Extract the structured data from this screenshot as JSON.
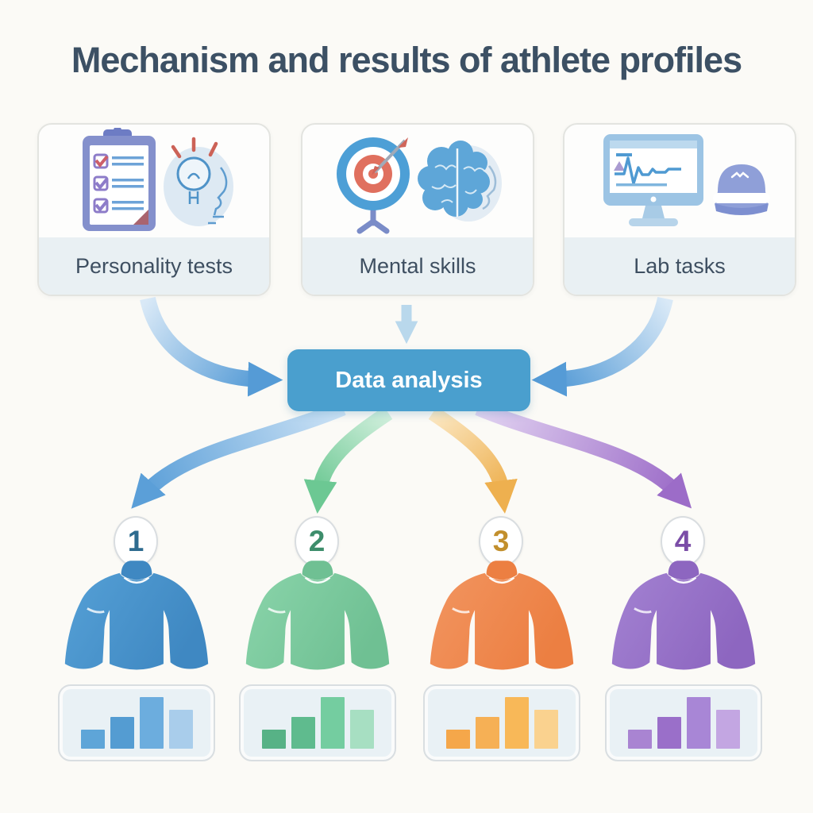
{
  "title": "Mechanism and results of athlete profiles",
  "colors": {
    "background": "#fbfaf6",
    "title_text": "#3c5064",
    "card_label_bg": "#e9f0f3",
    "analysis_bg": "#4a9fce",
    "analysis_text": "#ffffff",
    "input_arrow_from": "#d9e9f7",
    "input_arrow_to": "#559bd6",
    "mid_arrow": "#b9d8ec",
    "circle_border": "#d9dde0"
  },
  "inputs": [
    {
      "label": "Personality tests",
      "icons": [
        "clipboard-checklist-icon",
        "head-lightbulb-icon"
      ]
    },
    {
      "label": "Mental skills",
      "icons": [
        "target-arrow-icon",
        "brain-profile-icon"
      ]
    },
    {
      "label": "Lab tasks",
      "icons": [
        "monitor-waveform-icon",
        "eeg-cap-icon"
      ]
    }
  ],
  "process": {
    "label": "Data analysis"
  },
  "profiles": [
    {
      "number": "1",
      "number_color": "#2e6b8f",
      "arrow": {
        "from": "#cfe4f6",
        "to": "#5b9fd8"
      },
      "torso": {
        "main": "#55a0d6",
        "shade": "#3f88c2"
      },
      "chart": {
        "type": "bar",
        "values": [
          33,
          55,
          90,
          68
        ],
        "bar_colors": [
          "#5ea5d8",
          "#549cd2",
          "#6cadde",
          "#a9cdeb"
        ]
      }
    },
    {
      "number": "2",
      "number_color": "#3d8d6b",
      "arrow": {
        "from": "#d3f0de",
        "to": "#6cc893"
      },
      "torso": {
        "main": "#8ad4aa",
        "shade": "#6fc093"
      },
      "chart": {
        "type": "bar",
        "values": [
          33,
          55,
          90,
          68
        ],
        "bar_colors": [
          "#57b286",
          "#5fbb8e",
          "#74cda0",
          "#a7dfc2"
        ]
      }
    },
    {
      "number": "3",
      "number_color": "#c28f2c",
      "arrow": {
        "from": "#fbe8c4",
        "to": "#eeb04f"
      },
      "torso": {
        "main": "#f29560",
        "shade": "#ec7f42"
      },
      "chart": {
        "type": "bar",
        "values": [
          33,
          55,
          90,
          68
        ],
        "bar_colors": [
          "#f5a74a",
          "#f6b055",
          "#f8b858",
          "#fad28f"
        ]
      }
    },
    {
      "number": "4",
      "number_color": "#7b4da7",
      "arrow": {
        "from": "#e3d5f2",
        "to": "#9c6cc8"
      },
      "torso": {
        "main": "#a382d2",
        "shade": "#8d66c0"
      },
      "chart": {
        "type": "bar",
        "values": [
          33,
          55,
          90,
          68
        ],
        "bar_colors": [
          "#a984d2",
          "#9a6fc9",
          "#a886d6",
          "#c3a6e2"
        ]
      }
    }
  ]
}
